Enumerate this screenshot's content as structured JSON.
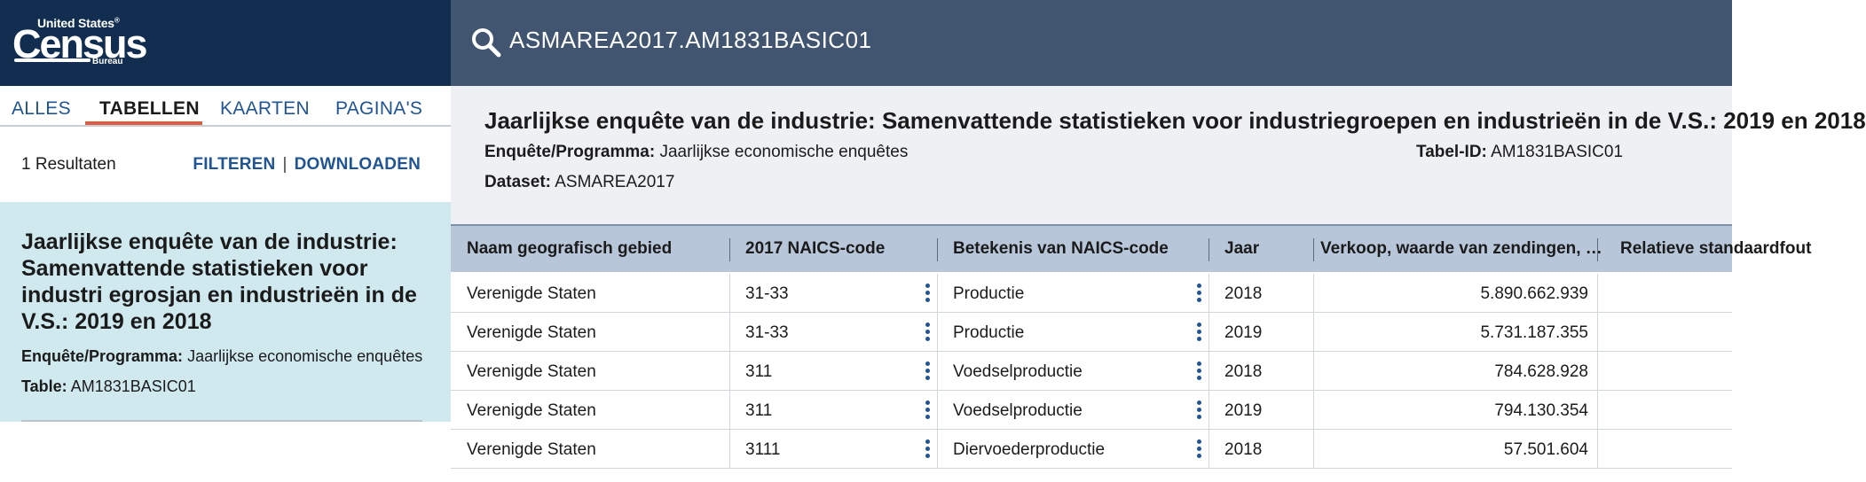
{
  "logo": {
    "top": "United States",
    "reg": "®",
    "main": "Census",
    "bottom": "Bureau"
  },
  "tabs": [
    {
      "label": "ALLES"
    },
    {
      "label": "TABELLEN",
      "active": true
    },
    {
      "label": "KAARTEN"
    },
    {
      "label": "PAGINA'S"
    }
  ],
  "results": {
    "count": "1 Resultaten",
    "filter": "FILTEREN",
    "sep": "|",
    "download": "DOWNLOADEN"
  },
  "result_card": {
    "title": "Jaarlijkse enquête van de industrie: Samenvattende statistieken voor industri egrosjan en industrieën in de V.S.: 2019 en 2018",
    "program_label": "Enquête/Programma:",
    "program_value": "Jaarlijkse economische enquêtes",
    "table_label": "Table:",
    "table_value": "AM1831BASIC01"
  },
  "search": {
    "query": "ASMAREA2017.AM1831BASIC01",
    "icon": "search-icon"
  },
  "table_header": {
    "title": "Jaarlijkse enquête van de industrie: Samenvattende statistieken voor industriegroepen en industrieën in de V.S.: 2019 en 2018",
    "program_label": "Enquête/Programma:",
    "program_value": "Jaarlijkse economische enquêtes",
    "tableid_label": "Tabel-ID:",
    "tableid_value": "AM1831BASIC01",
    "dataset_label": "Dataset:",
    "dataset_value": "ASMAREA2017"
  },
  "grid": {
    "columns": [
      "Naam geografisch gebied",
      "2017 NAICS-code",
      "Betekenis van NAICS-code",
      "Jaar",
      "Verkoop, waarde van zendingen, …",
      "Relatieve standaardfout"
    ],
    "rows": [
      [
        "Verenigde Staten",
        "31-33",
        "Productie",
        "2018",
        "5.890.662.939"
      ],
      [
        "Verenigde Staten",
        "31-33",
        "Productie",
        "2019",
        "5.731.187.355"
      ],
      [
        "Verenigde Staten",
        "311",
        "Voedselproductie",
        "2018",
        "784.628.928"
      ],
      [
        "Verenigde Staten",
        "311",
        "Voedselproductie",
        "2019",
        "794.130.354"
      ],
      [
        "Verenigde Staten",
        "3111",
        "Diervoederproductie",
        "2018",
        "57.501.604"
      ]
    ]
  },
  "colors": {
    "logo_bar": "#112e51",
    "search_bar": "#415570",
    "card": "#cfe9ef",
    "grid_head": "#b7c6d9",
    "accent": "#e05b43",
    "link": "#205493"
  }
}
